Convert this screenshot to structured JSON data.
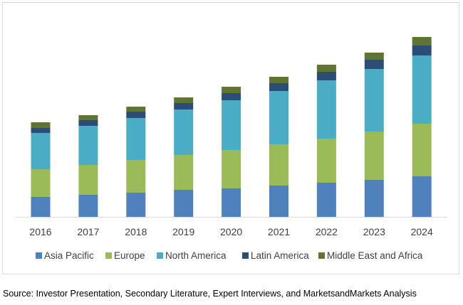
{
  "chart_data": {
    "type": "bar",
    "stacked": true,
    "categories": [
      "2016",
      "2017",
      "2018",
      "2019",
      "2020",
      "2021",
      "2022",
      "2023",
      "2024"
    ],
    "series": [
      {
        "name": "Asia Pacific",
        "color": "#4f81bd",
        "values": [
          28,
          31,
          34,
          38,
          40,
          44,
          48,
          52,
          57
        ]
      },
      {
        "name": "Europe",
        "color": "#9bbb59",
        "values": [
          39,
          42,
          46,
          49,
          54,
          58,
          62,
          68,
          74
        ]
      },
      {
        "name": "North America",
        "color": "#4bacc6",
        "values": [
          51,
          55,
          59,
          64,
          70,
          75,
          82,
          88,
          96
        ]
      },
      {
        "name": "Latin America",
        "color": "#2c4d75",
        "values": [
          7,
          8,
          9,
          9,
          10,
          11,
          12,
          13,
          14
        ]
      },
      {
        "name": "Middle East and Africa",
        "color": "#5f7530",
        "values": [
          8,
          7,
          7,
          8,
          9,
          9,
          10,
          10,
          12
        ]
      }
    ],
    "yaxis_visible": false,
    "grid": false,
    "legend_position": "bottom"
  },
  "source": "Source: Investor Presentation, Secondary Literature, Expert Interviews, and MarketsandMarkets Analysis"
}
